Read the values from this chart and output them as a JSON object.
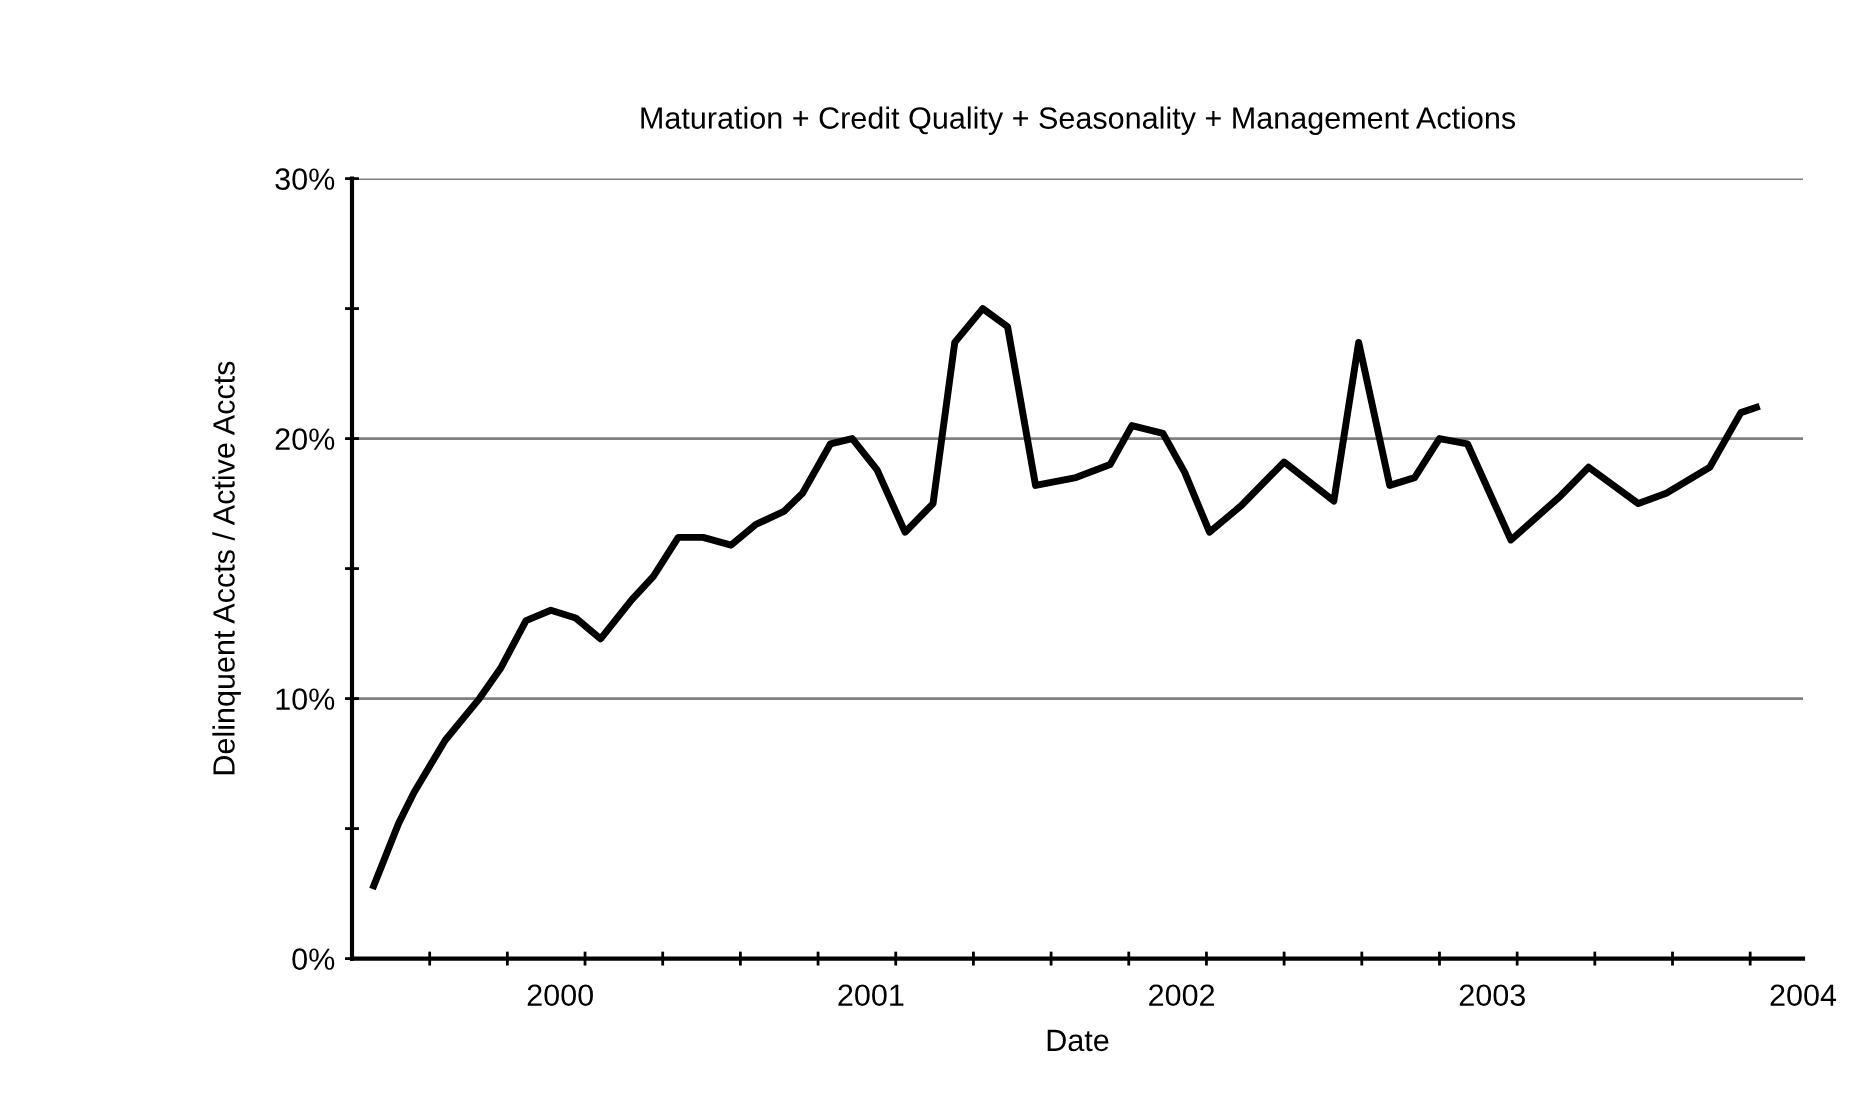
{
  "chart_data": {
    "type": "line",
    "title": "Maturation + Credit Quality + Seasonality + Management Actions",
    "xlabel": "Date",
    "ylabel": "Delinquent Accts / Active Accts",
    "x": [
      1999.4,
      1999.48,
      1999.53,
      1999.63,
      1999.74,
      1999.81,
      1999.89,
      1999.97,
      2000.05,
      2000.13,
      2000.23,
      2000.3,
      2000.38,
      2000.46,
      2000.55,
      2000.63,
      2000.72,
      2000.78,
      2000.87,
      2000.94,
      2001.02,
      2001.11,
      2001.2,
      2001.27,
      2001.36,
      2001.44,
      2001.53,
      2001.66,
      2001.77,
      2001.84,
      2001.94,
      2002.01,
      2002.09,
      2002.19,
      2002.33,
      2002.49,
      2002.57,
      2002.67,
      2002.75,
      2002.83,
      2002.92,
      2003.06,
      2003.22,
      2003.31,
      2003.47,
      2003.56,
      2003.7,
      2003.8,
      2003.85
    ],
    "series": [
      {
        "color": "#000000",
        "values": [
          2.8,
          5.2,
          6.4,
          8.4,
          10.0,
          11.2,
          13.0,
          13.4,
          13.1,
          12.3,
          13.8,
          14.7,
          16.2,
          16.2,
          15.9,
          16.7,
          17.2,
          17.9,
          19.8,
          20.0,
          18.8,
          16.4,
          17.5,
          23.7,
          25.0,
          24.3,
          18.2,
          18.5,
          19.0,
          20.5,
          20.2,
          18.7,
          16.4,
          17.4,
          19.1,
          17.6,
          23.7,
          18.2,
          18.5,
          20.0,
          19.8,
          16.1,
          17.8,
          18.9,
          17.5,
          17.9,
          18.9,
          21.0,
          21.2
        ]
      }
    ],
    "xlim": [
      1999.33,
      2004.0
    ],
    "xticks": [
      {
        "value": 1999.58,
        "label": null
      },
      {
        "value": 1999.83,
        "label": null
      },
      {
        "value": 2000,
        "label": "2000"
      },
      {
        "value": 2000.08,
        "label": null
      },
      {
        "value": 2000.33,
        "label": null
      },
      {
        "value": 2000.58,
        "label": null
      },
      {
        "value": 2000.83,
        "label": null
      },
      {
        "value": 2001,
        "label": "2001"
      },
      {
        "value": 2001.08,
        "label": null
      },
      {
        "value": 2001.33,
        "label": null
      },
      {
        "value": 2001.58,
        "label": null
      },
      {
        "value": 2001.83,
        "label": null
      },
      {
        "value": 2002,
        "label": "2002"
      },
      {
        "value": 2002.08,
        "label": null
      },
      {
        "value": 2002.33,
        "label": null
      },
      {
        "value": 2002.58,
        "label": null
      },
      {
        "value": 2002.83,
        "label": null
      },
      {
        "value": 2003,
        "label": "2003"
      },
      {
        "value": 2003.08,
        "label": null
      },
      {
        "value": 2003.33,
        "label": null
      },
      {
        "value": 2003.58,
        "label": null
      },
      {
        "value": 2003.83,
        "label": null
      },
      {
        "value": 2004,
        "label": "2004"
      }
    ],
    "ylim": [
      0,
      30
    ],
    "yticks": [
      {
        "value": 0,
        "label": "0%"
      },
      {
        "value": 5,
        "label": null
      },
      {
        "value": 10,
        "label": "10%"
      },
      {
        "value": 15,
        "label": null
      },
      {
        "value": 20,
        "label": "20%"
      },
      {
        "value": 25,
        "label": null
      },
      {
        "value": 30,
        "label": "30%"
      }
    ],
    "grid": "y",
    "legend": false,
    "marker": "none",
    "line_style": "solid"
  }
}
